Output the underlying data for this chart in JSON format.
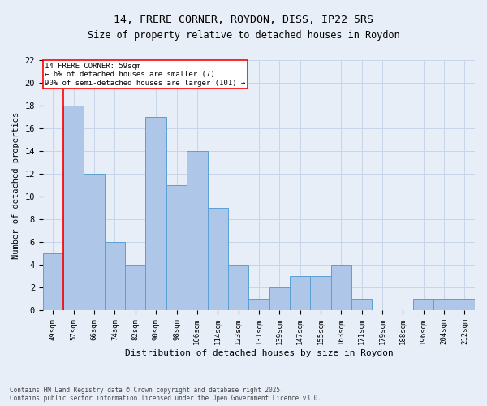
{
  "title_line1": "14, FRERE CORNER, ROYDON, DISS, IP22 5RS",
  "title_line2": "Size of property relative to detached houses in Roydon",
  "xlabel": "Distribution of detached houses by size in Roydon",
  "ylabel": "Number of detached properties",
  "footnote": "Contains HM Land Registry data © Crown copyright and database right 2025.\nContains public sector information licensed under the Open Government Licence v3.0.",
  "categories": [
    "49sqm",
    "57sqm",
    "66sqm",
    "74sqm",
    "82sqm",
    "90sqm",
    "98sqm",
    "106sqm",
    "114sqm",
    "123sqm",
    "131sqm",
    "139sqm",
    "147sqm",
    "155sqm",
    "163sqm",
    "171sqm",
    "179sqm",
    "188sqm",
    "196sqm",
    "204sqm",
    "212sqm"
  ],
  "values": [
    5,
    18,
    12,
    6,
    4,
    17,
    11,
    14,
    9,
    4,
    1,
    2,
    3,
    3,
    4,
    1,
    0,
    0,
    1,
    1,
    1
  ],
  "bar_color": "#aec6e8",
  "bar_edge_color": "#5a9fd4",
  "grid_color": "#c8d4e8",
  "background_color": "#e8eef8",
  "annotation_text": "14 FRERE CORNER: 59sqm\n← 6% of detached houses are smaller (7)\n90% of semi-detached houses are larger (101) →",
  "red_line_x": 0.5,
  "ylim": [
    0,
    22
  ],
  "yticks": [
    0,
    2,
    4,
    6,
    8,
    10,
    12,
    14,
    16,
    18,
    20,
    22
  ]
}
